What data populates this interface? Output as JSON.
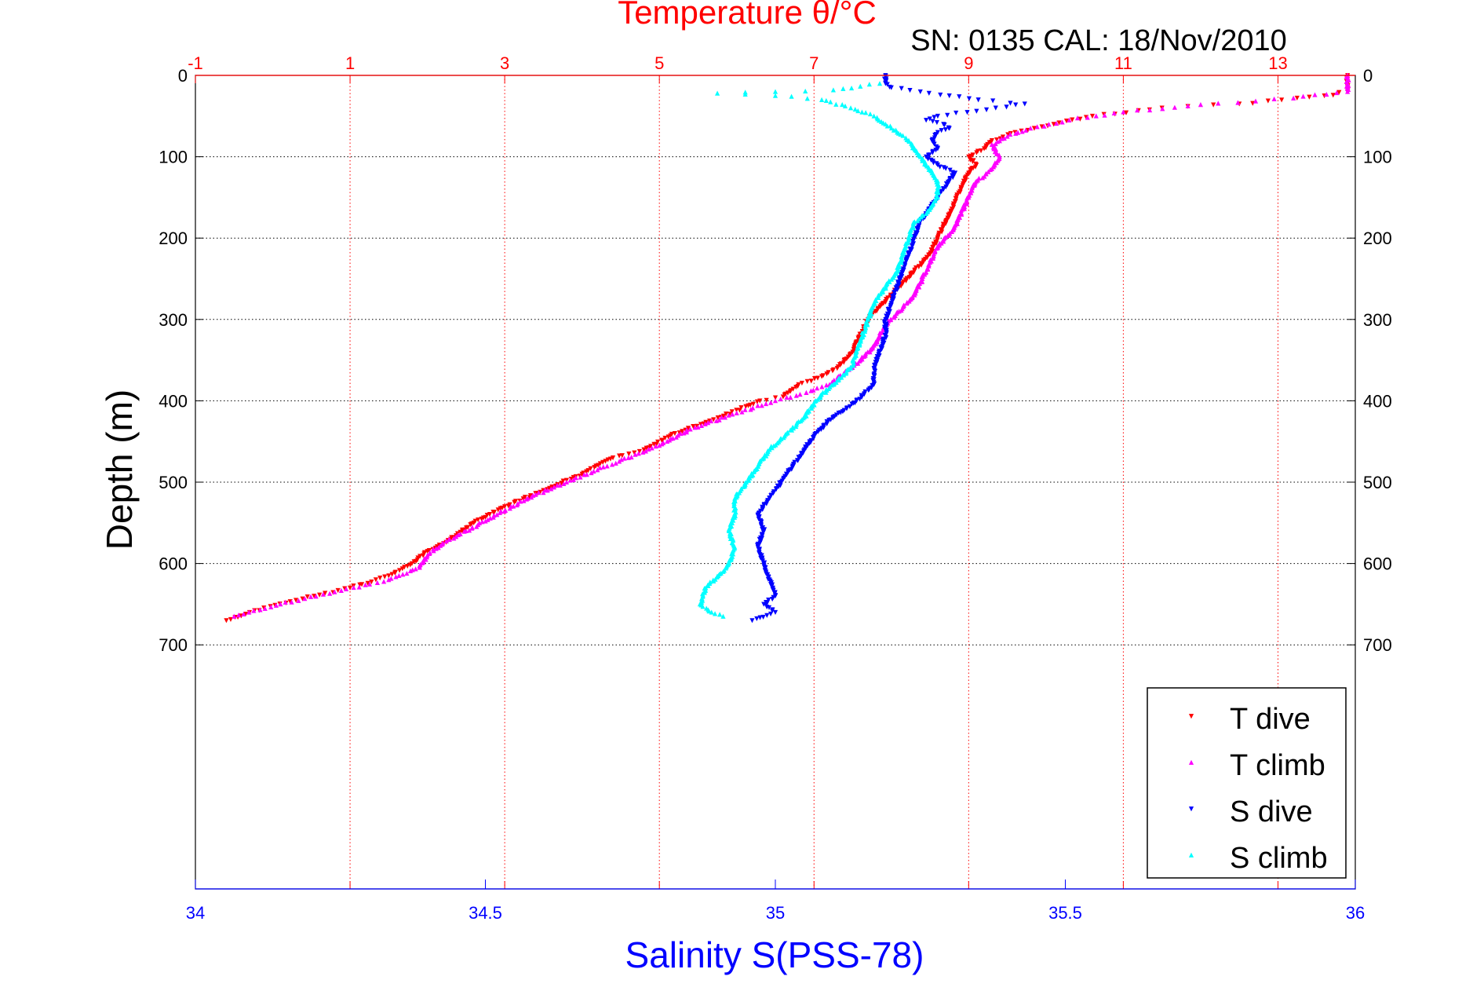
{
  "chart_data": {
    "type": "scatter",
    "title": "Temperature θ/°C",
    "subtitle": "SN: 0135  CAL: 18/Nov/2010",
    "ylabel": "Depth (m)",
    "xlabel": "Salinity S(PSS-78)",
    "grid": true,
    "legend_position": "bottom-right",
    "y_axis": {
      "range": [
        0,
        1000
      ],
      "reversed": true,
      "ticks": [
        0,
        100,
        200,
        300,
        400,
        500,
        600,
        700
      ],
      "tick_labels": [
        "0",
        "100",
        "200",
        "300",
        "400",
        "500",
        "600",
        "700"
      ]
    },
    "x_axis_temperature": {
      "range": [
        -1,
        14
      ],
      "ticks": [
        -1,
        1,
        3,
        5,
        7,
        9,
        11,
        13
      ],
      "tick_labels": [
        "-1",
        "1",
        "3",
        "5",
        "7",
        "9",
        "11",
        "13"
      ],
      "color": "#ff0000"
    },
    "x_axis_salinity": {
      "range": [
        34,
        36
      ],
      "ticks": [
        34,
        34.5,
        35,
        35.5,
        36
      ],
      "tick_labels": [
        "34",
        "34.5",
        "35",
        "35.5",
        "36"
      ],
      "color": "#0000ff"
    },
    "series": [
      {
        "name": "T dive",
        "axis": "temperature",
        "color": "#ff0000",
        "marker": "triangle-down",
        "points": [
          [
            13.9,
            0
          ],
          [
            13.9,
            10
          ],
          [
            13.9,
            20
          ],
          [
            13.6,
            25
          ],
          [
            12.5,
            35
          ],
          [
            11.5,
            40
          ],
          [
            10.6,
            50
          ],
          [
            10.1,
            60
          ],
          [
            9.6,
            70
          ],
          [
            9.3,
            80
          ],
          [
            9.2,
            90
          ],
          [
            9.0,
            100
          ],
          [
            9.1,
            110
          ],
          [
            9.0,
            120
          ],
          [
            8.9,
            140
          ],
          [
            8.8,
            160
          ],
          [
            8.7,
            180
          ],
          [
            8.6,
            200
          ],
          [
            8.5,
            220
          ],
          [
            8.3,
            240
          ],
          [
            8.1,
            260
          ],
          [
            7.9,
            280
          ],
          [
            7.7,
            300
          ],
          [
            7.6,
            320
          ],
          [
            7.5,
            340
          ],
          [
            7.3,
            360
          ],
          [
            7.1,
            370
          ],
          [
            6.8,
            380
          ],
          [
            6.6,
            395
          ],
          [
            6.3,
            400
          ],
          [
            5.8,
            420
          ],
          [
            5.2,
            440
          ],
          [
            4.8,
            460
          ],
          [
            4.4,
            470
          ],
          [
            4.0,
            490
          ],
          [
            3.5,
            510
          ],
          [
            3.0,
            530
          ],
          [
            2.6,
            550
          ],
          [
            2.3,
            570
          ],
          [
            2.0,
            585
          ],
          [
            1.8,
            600
          ],
          [
            1.5,
            615
          ],
          [
            1.0,
            630
          ],
          [
            0.3,
            645
          ],
          [
            -0.3,
            660
          ],
          [
            -0.6,
            670
          ]
        ]
      },
      {
        "name": "T climb",
        "axis": "temperature",
        "color": "#ff00ff",
        "marker": "triangle-up",
        "points": [
          [
            13.9,
            0
          ],
          [
            13.9,
            10
          ],
          [
            13.9,
            20
          ],
          [
            13.2,
            28
          ],
          [
            12.0,
            36
          ],
          [
            11.0,
            45
          ],
          [
            10.3,
            55
          ],
          [
            9.8,
            65
          ],
          [
            9.5,
            75
          ],
          [
            9.3,
            85
          ],
          [
            9.4,
            100
          ],
          [
            9.3,
            115
          ],
          [
            9.1,
            130
          ],
          [
            9.0,
            150
          ],
          [
            8.9,
            170
          ],
          [
            8.8,
            190
          ],
          [
            8.6,
            210
          ],
          [
            8.5,
            230
          ],
          [
            8.4,
            250
          ],
          [
            8.3,
            270
          ],
          [
            8.1,
            290
          ],
          [
            7.9,
            310
          ],
          [
            7.8,
            330
          ],
          [
            7.6,
            350
          ],
          [
            7.4,
            365
          ],
          [
            7.2,
            380
          ],
          [
            6.9,
            390
          ],
          [
            6.5,
            400
          ],
          [
            6.0,
            415
          ],
          [
            5.4,
            435
          ],
          [
            5.0,
            455
          ],
          [
            4.6,
            470
          ],
          [
            4.2,
            485
          ],
          [
            3.8,
            500
          ],
          [
            3.3,
            520
          ],
          [
            2.9,
            540
          ],
          [
            2.5,
            560
          ],
          [
            2.2,
            575
          ],
          [
            2.0,
            590
          ],
          [
            1.9,
            605
          ],
          [
            1.5,
            620
          ],
          [
            0.8,
            635
          ],
          [
            0.1,
            650
          ],
          [
            -0.5,
            665
          ]
        ]
      },
      {
        "name": "S dive",
        "axis": "salinity",
        "color": "#0000ff",
        "marker": "triangle-down",
        "points": [
          [
            35.19,
            0
          ],
          [
            35.19,
            10
          ],
          [
            35.2,
            15
          ],
          [
            35.25,
            20
          ],
          [
            35.3,
            25
          ],
          [
            35.35,
            30
          ],
          [
            35.43,
            35
          ],
          [
            35.38,
            40
          ],
          [
            35.28,
            50
          ],
          [
            35.26,
            55
          ],
          [
            35.29,
            60
          ],
          [
            35.3,
            65
          ],
          [
            35.28,
            70
          ],
          [
            35.27,
            80
          ],
          [
            35.28,
            90
          ],
          [
            35.26,
            100
          ],
          [
            35.28,
            110
          ],
          [
            35.31,
            120
          ],
          [
            35.3,
            130
          ],
          [
            35.29,
            140
          ],
          [
            35.28,
            150
          ],
          [
            35.27,
            160
          ],
          [
            35.25,
            180
          ],
          [
            35.24,
            200
          ],
          [
            35.23,
            220
          ],
          [
            35.22,
            240
          ],
          [
            35.21,
            260
          ],
          [
            35.2,
            280
          ],
          [
            35.19,
            300
          ],
          [
            35.19,
            320
          ],
          [
            35.18,
            340
          ],
          [
            35.17,
            360
          ],
          [
            35.17,
            380
          ],
          [
            35.14,
            400
          ],
          [
            35.1,
            420
          ],
          [
            35.07,
            440
          ],
          [
            35.05,
            460
          ],
          [
            35.03,
            480
          ],
          [
            35.01,
            500
          ],
          [
            34.99,
            520
          ],
          [
            34.97,
            540
          ],
          [
            34.98,
            560
          ],
          [
            34.97,
            580
          ],
          [
            34.98,
            600
          ],
          [
            34.99,
            620
          ],
          [
            35.0,
            640
          ],
          [
            34.98,
            650
          ],
          [
            35.0,
            660
          ],
          [
            34.96,
            670
          ]
        ]
      },
      {
        "name": "S climb",
        "axis": "salinity",
        "color": "#00ffff",
        "marker": "triangle-up",
        "points": [
          [
            35.18,
            10
          ],
          [
            35.1,
            18
          ],
          [
            35.0,
            20
          ],
          [
            34.9,
            22
          ],
          [
            35.0,
            25
          ],
          [
            35.08,
            30
          ],
          [
            35.13,
            40
          ],
          [
            35.17,
            50
          ],
          [
            35.19,
            60
          ],
          [
            35.21,
            70
          ],
          [
            35.23,
            80
          ],
          [
            35.24,
            90
          ],
          [
            35.25,
            100
          ],
          [
            35.26,
            110
          ],
          [
            35.27,
            120
          ],
          [
            35.28,
            130
          ],
          [
            35.28,
            140
          ],
          [
            35.28,
            150
          ],
          [
            35.27,
            160
          ],
          [
            35.26,
            170
          ],
          [
            35.24,
            180
          ],
          [
            35.23,
            200
          ],
          [
            35.22,
            220
          ],
          [
            35.21,
            240
          ],
          [
            35.19,
            260
          ],
          [
            35.17,
            280
          ],
          [
            35.16,
            300
          ],
          [
            35.15,
            320
          ],
          [
            35.14,
            340
          ],
          [
            35.13,
            360
          ],
          [
            35.1,
            380
          ],
          [
            35.07,
            400
          ],
          [
            35.05,
            420
          ],
          [
            35.02,
            440
          ],
          [
            34.99,
            460
          ],
          [
            34.97,
            480
          ],
          [
            34.95,
            500
          ],
          [
            34.93,
            520
          ],
          [
            34.93,
            540
          ],
          [
            34.92,
            560
          ],
          [
            34.93,
            580
          ],
          [
            34.92,
            600
          ],
          [
            34.91,
            610
          ],
          [
            34.88,
            630
          ],
          [
            34.87,
            650
          ],
          [
            34.89,
            660
          ],
          [
            34.91,
            665
          ]
        ]
      }
    ]
  }
}
